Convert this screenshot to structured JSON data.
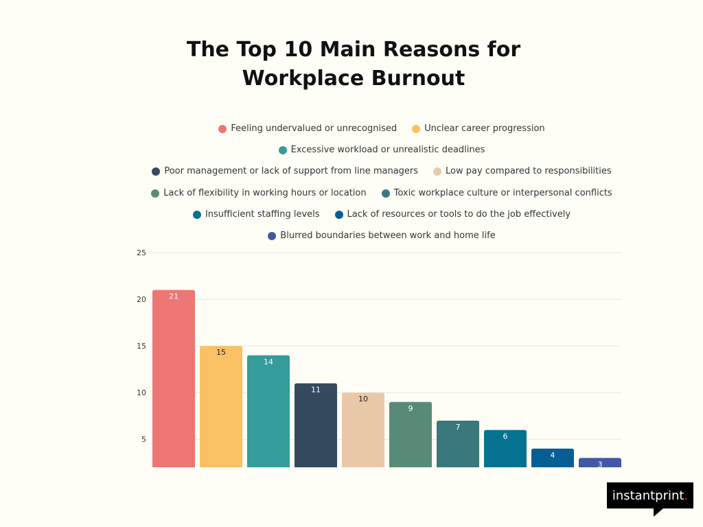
{
  "chart_data": {
    "type": "bar",
    "title": "The Top 10 Main Reasons for Workplace Burnout",
    "title_lines": [
      "The Top 10 Main Reasons for",
      "Workplace Burnout"
    ],
    "categories": [
      "Feeling undervalued or unrecognised",
      "Unclear career progression",
      "Excessive workload or unrealistic deadlines",
      "Poor management or lack of support from line managers",
      "Low pay compared to responsibilities",
      "Lack of flexibility in working hours or location",
      "Toxic workplace culture or interpersonal conflicts",
      "Insufficient staffing levels",
      "Lack of resources or tools to do the job effectively",
      "Blurred boundaries between work and home life"
    ],
    "values": [
      21,
      15,
      14,
      11,
      10,
      9,
      7,
      6,
      4,
      3
    ],
    "colors": [
      "#ee7674",
      "#f9c064",
      "#349c99",
      "#34495e",
      "#e9c8a8",
      "#588b77",
      "#3a787c",
      "#05728f",
      "#075e93",
      "#4258a5"
    ],
    "label_colors": [
      "#ffffff",
      "#222222",
      "#ffffff",
      "#ffffff",
      "#222222",
      "#ffffff",
      "#ffffff",
      "#ffffff",
      "#ffffff",
      "#ffffff"
    ],
    "yticks": [
      5,
      10,
      15,
      20,
      25
    ],
    "ylim": [
      2,
      25
    ],
    "grid": true,
    "legend_position": "top",
    "xlabel": "",
    "ylabel": ""
  },
  "brand": {
    "name": "instantprint",
    "dot": "."
  }
}
